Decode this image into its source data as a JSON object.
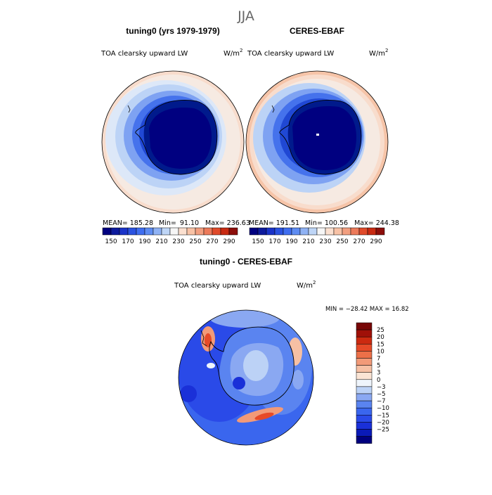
{
  "title": "JJA",
  "colors": {
    "abs_scale": [
      "#000080",
      "#0d1a9c",
      "#1a33c8",
      "#2a52e0",
      "#3f6ef0",
      "#5e8cf2",
      "#8fb2f4",
      "#bed5f6",
      "#f6f6f6",
      "#fbe0d0",
      "#f8c2a6",
      "#f29f80",
      "#ec7a5a",
      "#e04a2a",
      "#c82a12",
      "#8c0e0a"
    ],
    "diff_scale": [
      "#00007f",
      "#0a1ab8",
      "#1a30d8",
      "#2a4ae8",
      "#3a66ee",
      "#5a84f0",
      "#8aa8f2",
      "#bcd2f6",
      "#eef4fb",
      "#fbe4d4",
      "#f6c0a4",
      "#f29a78",
      "#ec7048",
      "#e64a28",
      "#cc2a10",
      "#a01008",
      "#780606"
    ]
  },
  "chart_data": [
    {
      "type": "heatmap",
      "projection": "polar-stereographic-south",
      "title": "tuning0 (yrs 1979-1979)",
      "subtitle": "TOA clearsky upward LW",
      "units_base": "W/m",
      "units_exp": "2",
      "stats": {
        "mean_label": "MEAN=",
        "mean": "185.28",
        "min_label": "Min=",
        "min": "91.10",
        "max_label": "Max=",
        "max": "236.63"
      },
      "colorbar_ticks": [
        "150",
        "170",
        "190",
        "210",
        "230",
        "250",
        "270",
        "290"
      ],
      "colorbar_levels": [
        150,
        160,
        170,
        180,
        190,
        200,
        210,
        220,
        230,
        240,
        250,
        260,
        270,
        280,
        290
      ]
    },
    {
      "type": "heatmap",
      "projection": "polar-stereographic-south",
      "title": "CERES-EBAF",
      "subtitle": "TOA clearsky upward LW",
      "units_base": "W/m",
      "units_exp": "2",
      "stats": {
        "mean_label": "MEAN=",
        "mean": "191.51",
        "min_label": "Min=",
        "min": "100.56",
        "max_label": "Max=",
        "max": "244.38"
      },
      "colorbar_ticks": [
        "150",
        "170",
        "190",
        "210",
        "230",
        "250",
        "270",
        "290"
      ],
      "colorbar_levels": [
        150,
        160,
        170,
        180,
        190,
        200,
        210,
        220,
        230,
        240,
        250,
        260,
        270,
        280,
        290
      ]
    },
    {
      "type": "heatmap",
      "projection": "polar-stereographic-south",
      "title": "tuning0 - CERES-EBAF",
      "subtitle": "TOA clearsky upward LW",
      "units_base": "W/m",
      "units_exp": "2",
      "minmax_text": "MIN = −28.42  MAX =  16.82",
      "colorbar_ticks": [
        "25",
        "20",
        "15",
        "10",
        "7",
        "5",
        "3",
        "0",
        "−3",
        "−5",
        "−7",
        "−10",
        "−15",
        "−20",
        "−25"
      ],
      "colorbar_levels": [
        -25,
        -20,
        -15,
        -10,
        -7,
        -5,
        -3,
        0,
        3,
        5,
        7,
        10,
        15,
        20,
        25
      ]
    }
  ]
}
